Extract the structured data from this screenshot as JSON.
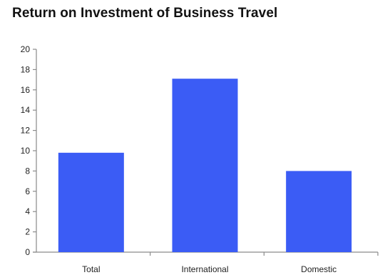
{
  "chart_data": {
    "type": "bar",
    "title": "Return on Investment of Business Travel",
    "categories": [
      "Total",
      "International",
      "Domestic"
    ],
    "values": [
      9.8,
      17.1,
      8.0
    ],
    "xlabel": "",
    "ylabel": "",
    "ylim": [
      0,
      20
    ],
    "yticks": [
      0,
      2,
      4,
      6,
      8,
      10,
      12,
      14,
      16,
      18,
      20
    ],
    "grid": false,
    "legend": "none",
    "colors": {
      "bar": "#3b5cf5",
      "axis": "#8a8a8a"
    }
  }
}
